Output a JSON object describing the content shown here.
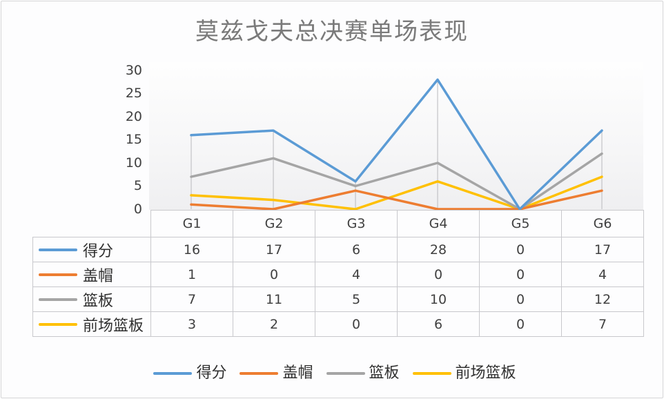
{
  "title": "莫兹戈夫总决赛单场表现",
  "colors": {
    "得分": "#5B9BD5",
    "盖帽": "#ED7D31",
    "篮板": "#A5A5A5",
    "前场篮板": "#FFC000"
  },
  "y_axis": {
    "ticks": [
      "30",
      "25",
      "20",
      "15",
      "10",
      "5",
      "0"
    ]
  },
  "table": {
    "headers": [
      "G1",
      "G2",
      "G3",
      "G4",
      "G5",
      "G6"
    ],
    "rows": [
      {
        "label": "得分",
        "values": [
          "16",
          "17",
          "6",
          "28",
          "0",
          "17"
        ]
      },
      {
        "label": "盖帽",
        "values": [
          "1",
          "0",
          "4",
          "0",
          "0",
          "4"
        ]
      },
      {
        "label": "篮板",
        "values": [
          "7",
          "11",
          "5",
          "10",
          "0",
          "12"
        ]
      },
      {
        "label": "前场篮板",
        "values": [
          "3",
          "2",
          "0",
          "6",
          "0",
          "7"
        ]
      }
    ]
  },
  "legend": [
    "得分",
    "盖帽",
    "篮板",
    "前场篮板"
  ],
  "chart_data": {
    "type": "line",
    "title": "莫兹戈夫总决赛单场表现",
    "categories": [
      "G1",
      "G2",
      "G3",
      "G4",
      "G5",
      "G6"
    ],
    "series": [
      {
        "name": "得分",
        "values": [
          16,
          17,
          6,
          28,
          0,
          17
        ],
        "color": "#5B9BD5"
      },
      {
        "name": "盖帽",
        "values": [
          1,
          0,
          4,
          0,
          0,
          4
        ],
        "color": "#ED7D31"
      },
      {
        "name": "篮板",
        "values": [
          7,
          11,
          5,
          10,
          0,
          12
        ],
        "color": "#A5A5A5"
      },
      {
        "name": "前场篮板",
        "values": [
          3,
          2,
          0,
          6,
          0,
          7
        ],
        "color": "#FFC000"
      }
    ],
    "xlabel": "",
    "ylabel": "",
    "ylim": [
      0,
      30
    ],
    "yticks": [
      0,
      5,
      10,
      15,
      20,
      25,
      30
    ],
    "grid": false,
    "drop_lines": true,
    "data_table": true,
    "legend_position": "bottom"
  }
}
